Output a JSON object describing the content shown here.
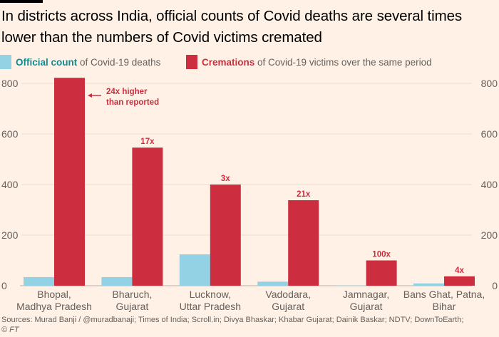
{
  "title": "In districts across India, official counts of Covid deaths are several times lower than the numbers of Covid victims cremated",
  "legend": {
    "official": {
      "strong": "Official count",
      "rest": " of Covid-19 deaths",
      "color": "#93D1E4"
    },
    "cremations": {
      "strong": "Cremations",
      "rest": " of Covid-19 victims over the same period",
      "color": "#CC2E3F"
    }
  },
  "annotation": {
    "line1": "24x higher",
    "line2": "than reported"
  },
  "source": "Sources: Murad Banji / @muradbanaji; Times of India; Scroll.in; Divya Bhaskar; Khabar Gujarat; Dainik Baskar; NDTV; DownToEarth;",
  "copyright": "© FT",
  "chart_data": {
    "type": "bar",
    "title": "In districts across India, official counts of Covid deaths are several times lower than the numbers of Covid victims cremated",
    "xlabel": "",
    "ylabel": "",
    "ylim": [
      0,
      850
    ],
    "yticks": [
      0,
      200,
      400,
      600,
      800
    ],
    "grid": true,
    "legend_position": "top-left",
    "categories": [
      [
        "Bhopal,",
        "Madhya Pradesh"
      ],
      [
        "Bharuch,",
        "Gujarat"
      ],
      [
        "Lucknow,",
        "Uttar Pradesh"
      ],
      [
        "Vadodara,",
        "Gujarat"
      ],
      [
        "Jamnagar,",
        "Gujarat"
      ],
      [
        "Bans Ghat, Patna,",
        "Bihar"
      ]
    ],
    "series": [
      {
        "name": "Official count of Covid-19 deaths",
        "color": "#93D1E4",
        "values": [
          34,
          34,
          124,
          16,
          1,
          9
        ]
      },
      {
        "name": "Cremations of Covid-19 victims over the same period",
        "color": "#CC2E3F",
        "values": [
          822,
          546,
          400,
          338,
          100,
          37
        ]
      }
    ],
    "multipliers": [
      "",
      "17x",
      "3x",
      "21x",
      "100x",
      "4x"
    ],
    "annotations": [
      {
        "category": 0,
        "text": "24x higher than reported"
      }
    ]
  }
}
